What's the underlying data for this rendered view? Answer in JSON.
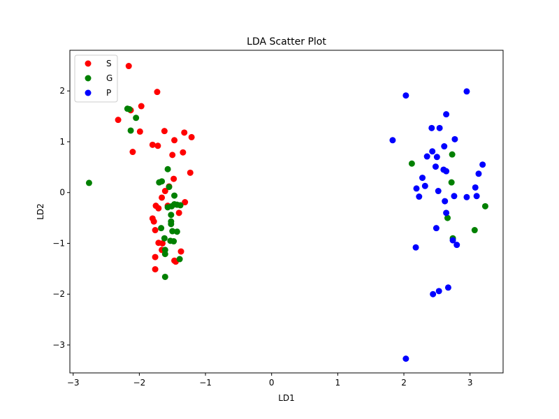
{
  "chart_data": {
    "type": "scatter",
    "title": "LDA Scatter Plot",
    "xlabel": "LD1",
    "ylabel": "LD2",
    "xlim": [
      -3.05,
      3.5
    ],
    "ylim": [
      -3.55,
      2.8
    ],
    "xticks": [
      -3,
      -2,
      -1,
      0,
      1,
      2,
      3
    ],
    "yticks": [
      -3,
      -2,
      -1,
      0,
      1,
      2
    ],
    "grid": false,
    "legend_position": "top-left",
    "series": [
      {
        "name": "S",
        "color": "#ff0000",
        "points": [
          [
            -2.16,
            2.49
          ],
          [
            -1.73,
            1.98
          ],
          [
            -1.97,
            1.7
          ],
          [
            -2.13,
            1.62
          ],
          [
            -2.32,
            1.43
          ],
          [
            -1.99,
            1.2
          ],
          [
            -1.62,
            1.21
          ],
          [
            -1.32,
            1.18
          ],
          [
            -1.21,
            1.09
          ],
          [
            -1.47,
            1.03
          ],
          [
            -1.8,
            0.94
          ],
          [
            -1.72,
            0.92
          ],
          [
            -2.1,
            0.8
          ],
          [
            -1.34,
            0.79
          ],
          [
            -1.5,
            0.74
          ],
          [
            -1.23,
            0.39
          ],
          [
            -1.48,
            0.27
          ],
          [
            -1.55,
            0.12
          ],
          [
            -1.61,
            0.03
          ],
          [
            -1.66,
            -0.1
          ],
          [
            -1.31,
            -0.19
          ],
          [
            -1.75,
            -0.26
          ],
          [
            -1.71,
            -0.31
          ],
          [
            -1.57,
            -0.26
          ],
          [
            -1.4,
            -0.4
          ],
          [
            -1.8,
            -0.51
          ],
          [
            -1.78,
            -0.57
          ],
          [
            -1.76,
            -0.74
          ],
          [
            -1.71,
            -0.99
          ],
          [
            -1.65,
            -1.0
          ],
          [
            -1.66,
            -1.13
          ],
          [
            -1.37,
            -1.16
          ],
          [
            -1.76,
            -1.27
          ],
          [
            -1.47,
            -1.34
          ],
          [
            -1.45,
            -1.36
          ],
          [
            -1.76,
            -1.51
          ]
        ]
      },
      {
        "name": "G",
        "color": "#008000",
        "points": [
          [
            -2.76,
            0.19
          ],
          [
            -2.18,
            1.65
          ],
          [
            -2.15,
            1.64
          ],
          [
            -2.05,
            1.47
          ],
          [
            -2.13,
            1.22
          ],
          [
            -1.57,
            0.46
          ],
          [
            -1.7,
            0.2
          ],
          [
            -1.66,
            0.22
          ],
          [
            -1.55,
            0.11
          ],
          [
            -1.47,
            -0.06
          ],
          [
            -1.47,
            -0.23
          ],
          [
            -1.57,
            -0.29
          ],
          [
            -1.51,
            -0.27
          ],
          [
            -1.43,
            -0.24
          ],
          [
            -1.38,
            -0.25
          ],
          [
            -1.52,
            -0.44
          ],
          [
            -1.52,
            -0.57
          ],
          [
            -1.52,
            -0.62
          ],
          [
            -1.5,
            -0.76
          ],
          [
            -1.43,
            -0.77
          ],
          [
            -1.67,
            -0.7
          ],
          [
            -1.62,
            -0.9
          ],
          [
            -1.53,
            -0.95
          ],
          [
            -1.48,
            -0.96
          ],
          [
            -1.61,
            -1.13
          ],
          [
            -1.61,
            -1.21
          ],
          [
            -1.39,
            -1.31
          ],
          [
            -1.61,
            -1.66
          ],
          [
            2.12,
            0.57
          ],
          [
            2.73,
            0.75
          ],
          [
            2.72,
            0.2
          ],
          [
            2.66,
            -0.5
          ],
          [
            3.23,
            -0.27
          ],
          [
            3.07,
            -0.74
          ],
          [
            2.74,
            -0.9
          ]
        ]
      },
      {
        "name": "P",
        "color": "#0000ff",
        "points": [
          [
            2.95,
            1.99
          ],
          [
            2.03,
            1.91
          ],
          [
            2.64,
            1.54
          ],
          [
            2.42,
            1.27
          ],
          [
            2.54,
            1.27
          ],
          [
            1.83,
            1.03
          ],
          [
            2.77,
            1.05
          ],
          [
            2.61,
            0.91
          ],
          [
            2.43,
            0.81
          ],
          [
            2.35,
            0.71
          ],
          [
            2.5,
            0.7
          ],
          [
            3.19,
            0.55
          ],
          [
            2.48,
            0.51
          ],
          [
            2.6,
            0.45
          ],
          [
            2.64,
            0.42
          ],
          [
            3.13,
            0.37
          ],
          [
            2.28,
            0.29
          ],
          [
            2.32,
            0.13
          ],
          [
            2.19,
            0.08
          ],
          [
            2.52,
            0.03
          ],
          [
            3.08,
            0.1
          ],
          [
            2.23,
            -0.08
          ],
          [
            2.76,
            -0.07
          ],
          [
            2.95,
            -0.09
          ],
          [
            3.1,
            -0.07
          ],
          [
            2.62,
            -0.17
          ],
          [
            2.64,
            -0.4
          ],
          [
            2.49,
            -0.7
          ],
          [
            2.74,
            -0.94
          ],
          [
            2.8,
            -1.03
          ],
          [
            2.18,
            -1.08
          ],
          [
            2.67,
            -1.87
          ],
          [
            2.53,
            -1.94
          ],
          [
            2.44,
            -2.0
          ],
          [
            2.03,
            -3.27
          ]
        ]
      }
    ]
  }
}
